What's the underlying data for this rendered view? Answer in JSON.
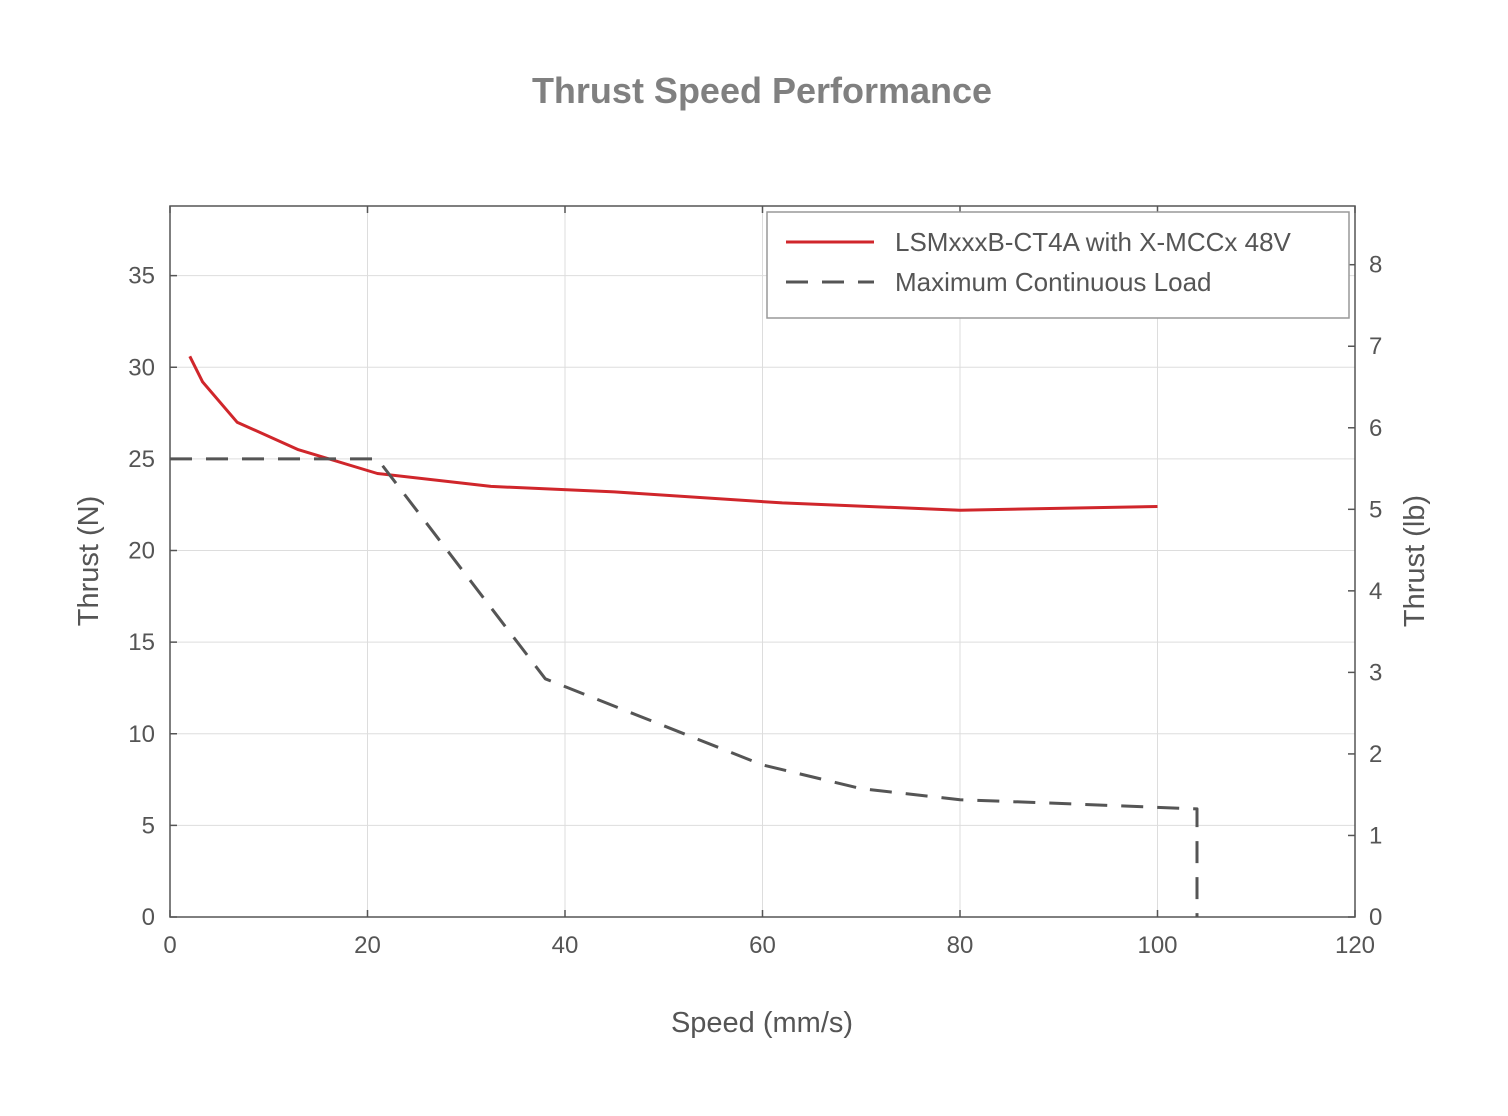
{
  "chart_data": {
    "type": "line",
    "title": "Thrust Speed Performance",
    "xlabel": "Speed (mm/s)",
    "ylabel": "Thrust (N)",
    "y2label": "Thrust (lb)",
    "xlim": [
      0,
      120
    ],
    "ylim": [
      0,
      38.8
    ],
    "y2lim": [
      0,
      8.72
    ],
    "xticks": [
      0,
      20,
      40,
      60,
      80,
      100,
      120
    ],
    "yticks": [
      0,
      5,
      10,
      15,
      20,
      25,
      30,
      35
    ],
    "y2ticks": [
      0,
      1,
      2,
      3,
      4,
      5,
      6,
      7,
      8
    ],
    "grid": true,
    "legend_position": "top-right",
    "series": [
      {
        "name": "LSMxxxB-CT4A with X-MCCx 48V",
        "style": "solid",
        "color": "#d0262b",
        "x": [
          2,
          3.3,
          6.8,
          13,
          21,
          32.5,
          45,
          62,
          80,
          100
        ],
        "y": [
          30.6,
          29.2,
          27.0,
          25.5,
          24.2,
          23.5,
          23.2,
          22.6,
          22.2,
          22.4
        ]
      },
      {
        "name": "Maximum Continuous Load",
        "style": "dashed",
        "color": "#555555",
        "x": [
          0,
          21,
          38,
          60,
          70,
          80,
          90,
          104,
          104
        ],
        "y": [
          25.0,
          25.0,
          13.0,
          8.3,
          7.0,
          6.4,
          6.2,
          5.9,
          0
        ]
      }
    ]
  }
}
